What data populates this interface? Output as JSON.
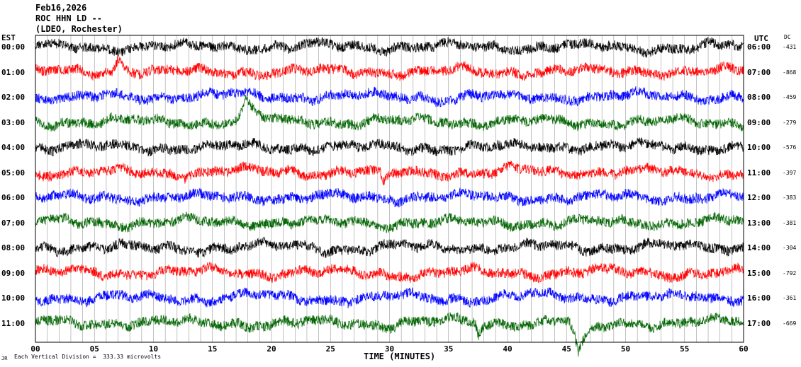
{
  "header": {
    "date": "Feb16,2026",
    "station": "ROC HHN LD --",
    "network": "(LDEO, Rochester)"
  },
  "axes": {
    "left_zone": "EST",
    "right_zone": "UTC",
    "dc_header": "DC",
    "xlabel": "TIME (MINUTES)",
    "x_ticks": [
      "00",
      "05",
      "10",
      "15",
      "20",
      "25",
      "30",
      "35",
      "40",
      "45",
      "50",
      "55",
      "60"
    ],
    "scale_note": "Each Vertical Division =  333.33 microvolts",
    "corner_mark": "JR"
  },
  "chart_data": {
    "type": "line",
    "title": "",
    "xlabel": "TIME (MINUTES)",
    "xlim": [
      0,
      60
    ],
    "grid": "vertical every 1 minute",
    "trace_colors": [
      "#000000",
      "#ff0000",
      "#0000ff",
      "#006400"
    ],
    "rows": [
      {
        "est": "00:00",
        "utc": "06:00",
        "dc": "-431",
        "color": "#000000"
      },
      {
        "est": "01:00",
        "utc": "07:00",
        "dc": "-868",
        "color": "#ff0000"
      },
      {
        "est": "02:00",
        "utc": "08:00",
        "dc": "-459",
        "color": "#0000ff"
      },
      {
        "est": "03:00",
        "utc": "09:00",
        "dc": "-279",
        "color": "#006400"
      },
      {
        "est": "04:00",
        "utc": "10:00",
        "dc": "-576",
        "color": "#000000"
      },
      {
        "est": "05:00",
        "utc": "11:00",
        "dc": "-397",
        "color": "#ff0000"
      },
      {
        "est": "06:00",
        "utc": "12:00",
        "dc": "-383",
        "color": "#0000ff"
      },
      {
        "est": "07:00",
        "utc": "13:00",
        "dc": "-381",
        "color": "#006400"
      },
      {
        "est": "08:00",
        "utc": "14:00",
        "dc": "-304",
        "color": "#000000"
      },
      {
        "est": "09:00",
        "utc": "15:00",
        "dc": "-792",
        "color": "#ff0000"
      },
      {
        "est": "10:00",
        "utc": "16:00",
        "dc": "-361",
        "color": "#0000ff"
      },
      {
        "est": "11:00",
        "utc": "17:00",
        "dc": "-669",
        "color": "#006400"
      }
    ],
    "events": [
      {
        "row": 1,
        "minute": 7.0,
        "amp": 22,
        "sign": -1,
        "width": 0.6
      },
      {
        "row": 3,
        "minute": 17.8,
        "amp": 30,
        "sign": -1,
        "width": 0.8
      },
      {
        "row": 5,
        "minute": 29.5,
        "amp": 20,
        "sign": 1,
        "width": 0.6
      },
      {
        "row": 11,
        "minute": 46.0,
        "amp": 45,
        "sign": 1,
        "width": 0.9
      },
      {
        "row": 11,
        "minute": 37.5,
        "amp": 18,
        "sign": 1,
        "width": 0.3
      }
    ]
  }
}
